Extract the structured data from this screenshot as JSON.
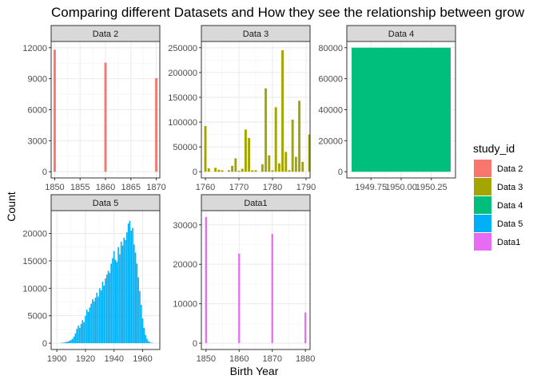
{
  "chart_data": {
    "type": "bar",
    "title": "Comparing different Datasets and How they see the relationship between grow",
    "xlabel": "Birth Year",
    "ylabel": "Count",
    "legend": {
      "title": "study_id",
      "position": "right",
      "entries": [
        {
          "name": "Data 2",
          "color": "#F8766D"
        },
        {
          "name": "Data 3",
          "color": "#A3A500"
        },
        {
          "name": "Data 4",
          "color": "#00BF7D"
        },
        {
          "name": "Data 5",
          "color": "#00B0F6"
        },
        {
          "name": "Data1",
          "color": "#E76BF3"
        }
      ]
    },
    "facets": [
      {
        "strip": "Data 2",
        "color": "#F8766D",
        "xlim": [
          1849.3,
          1870.7
        ],
        "ylim": [
          -600,
          12600
        ],
        "xticks": [
          1850,
          1855,
          1860,
          1865,
          1870
        ],
        "xtick_labels": [
          "1850",
          "1855",
          "1860",
          "1865",
          "1870"
        ],
        "yticks": [
          0,
          3000,
          6000,
          9000,
          12000
        ],
        "ytick_labels": [
          "0",
          "3000",
          "6000",
          "9000",
          "12000"
        ],
        "bar_width": 0.45,
        "bars": [
          [
            1850,
            11800
          ],
          [
            1860,
            10550
          ],
          [
            1870,
            9050
          ]
        ]
      },
      {
        "strip": "Data 3",
        "color": "#A3A500",
        "xlim": [
          1758.8,
          1791.2
        ],
        "ylim": [
          -12500,
          262500
        ],
        "xticks": [
          1760,
          1770,
          1780,
          1790
        ],
        "xtick_labels": [
          "1760",
          "1770",
          "1780",
          "1790"
        ],
        "yticks": [
          0,
          50000,
          100000,
          150000,
          200000,
          250000
        ],
        "ytick_labels": [
          "0",
          "50000",
          "100000",
          "150000",
          "200000",
          "250000"
        ],
        "bar_width": 0.7,
        "bars": [
          [
            1760,
            92000
          ],
          [
            1761,
            7000
          ],
          [
            1763,
            8000
          ],
          [
            1764,
            4000
          ],
          [
            1765,
            3000
          ],
          [
            1767,
            3000
          ],
          [
            1768,
            12000
          ],
          [
            1769,
            27000
          ],
          [
            1770,
            2000
          ],
          [
            1771,
            6000
          ],
          [
            1772,
            85000
          ],
          [
            1773,
            68000
          ],
          [
            1774,
            3000
          ],
          [
            1775,
            3000
          ],
          [
            1777,
            15000
          ],
          [
            1778,
            168000
          ],
          [
            1779,
            33000
          ],
          [
            1780,
            3000
          ],
          [
            1781,
            130000
          ],
          [
            1782,
            17000
          ],
          [
            1783,
            245000
          ],
          [
            1784,
            40000
          ],
          [
            1785,
            3000
          ],
          [
            1786,
            105000
          ],
          [
            1787,
            30000
          ],
          [
            1788,
            143000
          ],
          [
            1789,
            20000
          ],
          [
            1791,
            75000
          ]
        ]
      },
      {
        "strip": "Data 4",
        "color": "#00BF7D",
        "xlim": [
          1949.55,
          1950.45
        ],
        "ylim": [
          -4000,
          84000
        ],
        "xticks": [
          1949.75,
          1950.0,
          1950.25
        ],
        "xtick_labels": [
          "1949.75",
          "1950.00",
          "1950.25"
        ],
        "yticks": [
          0,
          20000,
          40000,
          60000,
          80000
        ],
        "ytick_labels": [
          "0",
          "20000",
          "40000",
          "60000",
          "80000"
        ],
        "bar_width": 0.82,
        "bars": [
          [
            1950,
            80000
          ]
        ]
      },
      {
        "strip": "Data 5",
        "color": "#00B0F6",
        "xlim": [
          1896,
          1972
        ],
        "ylim": [
          -1150,
          24150
        ],
        "xticks": [
          1900,
          1920,
          1940,
          1960
        ],
        "xtick_labels": [
          "1900",
          "1920",
          "1940",
          "1960"
        ],
        "yticks": [
          0,
          5000,
          10000,
          15000,
          20000
        ],
        "ytick_labels": [
          "0",
          "5000",
          "10000",
          "15000",
          "20000"
        ],
        "bar_width": 0.9,
        "bars": [
          [
            1903,
            50
          ],
          [
            1904,
            80
          ],
          [
            1905,
            120
          ],
          [
            1906,
            200
          ],
          [
            1907,
            250
          ],
          [
            1908,
            300
          ],
          [
            1909,
            450
          ],
          [
            1910,
            600
          ],
          [
            1911,
            800
          ],
          [
            1912,
            1200
          ],
          [
            1913,
            1800
          ],
          [
            1914,
            2600
          ],
          [
            1915,
            3200
          ],
          [
            1916,
            2800
          ],
          [
            1917,
            3500
          ],
          [
            1918,
            4200
          ],
          [
            1919,
            3800
          ],
          [
            1920,
            5000
          ],
          [
            1921,
            6100
          ],
          [
            1922,
            5700
          ],
          [
            1923,
            6500
          ],
          [
            1924,
            7200
          ],
          [
            1925,
            8000
          ],
          [
            1926,
            7600
          ],
          [
            1927,
            8300
          ],
          [
            1928,
            9200
          ],
          [
            1929,
            8500
          ],
          [
            1930,
            10000
          ],
          [
            1931,
            9600
          ],
          [
            1932,
            11200
          ],
          [
            1933,
            10500
          ],
          [
            1934,
            11800
          ],
          [
            1935,
            12500
          ],
          [
            1936,
            13200
          ],
          [
            1937,
            12800
          ],
          [
            1938,
            14500
          ],
          [
            1939,
            15500
          ],
          [
            1940,
            16800
          ],
          [
            1941,
            15200
          ],
          [
            1942,
            14800
          ],
          [
            1943,
            17500
          ],
          [
            1944,
            16200
          ],
          [
            1945,
            18500
          ],
          [
            1946,
            17800
          ],
          [
            1947,
            19200
          ],
          [
            1948,
            18800
          ],
          [
            1949,
            20200
          ],
          [
            1950,
            21800
          ],
          [
            1951,
            22300
          ],
          [
            1952,
            20500
          ],
          [
            1953,
            21000
          ],
          [
            1954,
            18000
          ],
          [
            1955,
            16500
          ],
          [
            1956,
            14500
          ],
          [
            1957,
            12000
          ],
          [
            1958,
            9500
          ],
          [
            1959,
            7000
          ],
          [
            1960,
            4500
          ],
          [
            1961,
            2800
          ],
          [
            1962,
            1500
          ],
          [
            1963,
            800
          ],
          [
            1964,
            400
          ],
          [
            1965,
            200
          ],
          [
            1966,
            100
          ],
          [
            1967,
            50
          ]
        ]
      },
      {
        "strip": "Data1",
        "color": "#E76BF3",
        "xlim": [
          1848.6,
          1881.4
        ],
        "ylim": [
          -1600,
          33600
        ],
        "xticks": [
          1850,
          1860,
          1870,
          1880
        ],
        "xtick_labels": [
          "1850",
          "1860",
          "1870",
          "1880"
        ],
        "yticks": [
          0,
          10000,
          20000,
          30000
        ],
        "ytick_labels": [
          "0",
          "10000",
          "20000",
          "30000"
        ],
        "bar_width": 0.55,
        "bars": [
          [
            1850,
            32000
          ],
          [
            1860,
            22700
          ],
          [
            1870,
            27700
          ],
          [
            1880,
            7800
          ]
        ]
      }
    ]
  }
}
